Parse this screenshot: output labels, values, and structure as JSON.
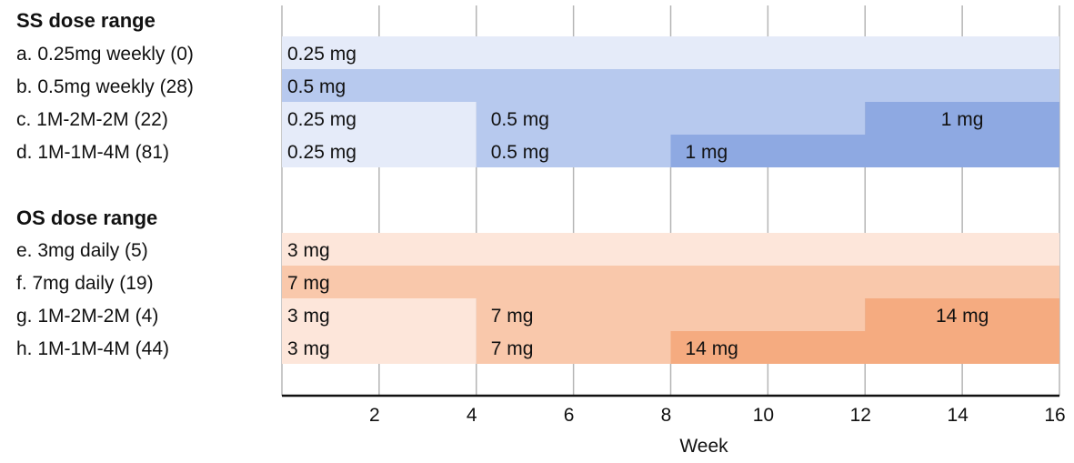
{
  "chart_data": {
    "type": "bar",
    "xlabel": "Week",
    "xlim": [
      0,
      16
    ],
    "x_ticks": [
      2,
      4,
      6,
      8,
      10,
      12,
      14,
      16
    ],
    "groups": [
      {
        "title": "SS dose range",
        "rows": [
          {
            "label": "a. 0.25mg weekly (0)",
            "segments": [
              {
                "start": 0,
                "end": 16,
                "dose": "0.25 mg",
                "color": "#e5ebf9"
              }
            ]
          },
          {
            "label": "b. 0.5mg weekly (28)",
            "segments": [
              {
                "start": 0,
                "end": 16,
                "dose": "0.5 mg",
                "color": "#b7c9ee"
              }
            ]
          },
          {
            "label": "c. 1M-2M-2M (22)",
            "segments": [
              {
                "start": 0,
                "end": 4,
                "dose": "0.25 mg",
                "color": "#e5ebf9"
              },
              {
                "start": 4,
                "end": 12,
                "dose": "0.5 mg",
                "color": "#b7c9ee"
              },
              {
                "start": 12,
                "end": 16,
                "dose": "1 mg",
                "color": "#8ea9e2"
              }
            ]
          },
          {
            "label": "d. 1M-1M-4M (81)",
            "segments": [
              {
                "start": 0,
                "end": 4,
                "dose": "0.25 mg",
                "color": "#e5ebf9"
              },
              {
                "start": 4,
                "end": 8,
                "dose": "0.5 mg",
                "color": "#b7c9ee"
              },
              {
                "start": 8,
                "end": 16,
                "dose": "1 mg",
                "color": "#8ea9e2"
              }
            ]
          }
        ]
      },
      {
        "title": "OS dose range",
        "rows": [
          {
            "label": "e. 3mg daily (5)",
            "segments": [
              {
                "start": 0,
                "end": 16,
                "dose": "3 mg",
                "color": "#fde6da"
              }
            ]
          },
          {
            "label": "f. 7mg daily (19)",
            "segments": [
              {
                "start": 0,
                "end": 16,
                "dose": "7 mg",
                "color": "#f9c8ab"
              }
            ]
          },
          {
            "label": "g. 1M-2M-2M (4)",
            "segments": [
              {
                "start": 0,
                "end": 4,
                "dose": "3 mg",
                "color": "#fde6da"
              },
              {
                "start": 4,
                "end": 12,
                "dose": "7 mg",
                "color": "#f9c8ab"
              },
              {
                "start": 12,
                "end": 16,
                "dose": "14 mg",
                "color": "#f5ab80"
              }
            ]
          },
          {
            "label": "h. 1M-1M-4M (44)",
            "segments": [
              {
                "start": 0,
                "end": 4,
                "dose": "3 mg",
                "color": "#fde6da"
              },
              {
                "start": 4,
                "end": 8,
                "dose": "7 mg",
                "color": "#f9c8ab"
              },
              {
                "start": 8,
                "end": 16,
                "dose": "14 mg",
                "color": "#f5ab80"
              }
            ]
          }
        ]
      }
    ]
  }
}
